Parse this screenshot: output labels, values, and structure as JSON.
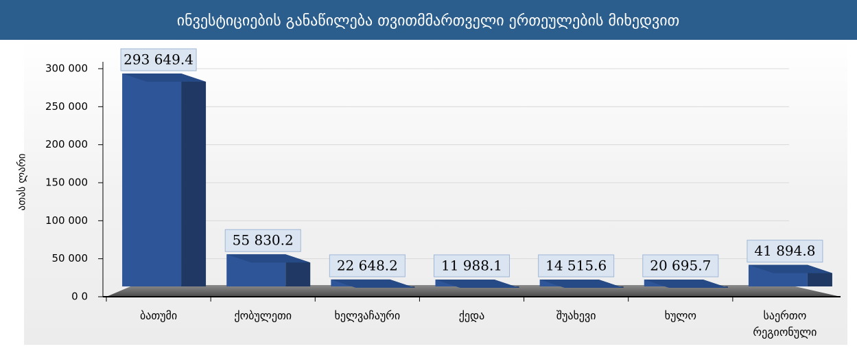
{
  "chart_data": {
    "type": "bar3d",
    "title": "ინვესტიციების განაწილება თვითმმართველი ერთეულების მიხედვით",
    "ylabel": "ათას ლარი",
    "categories": [
      "ბათუმი",
      "ქობულეთი",
      "ხელვაჩაური",
      "ქედა",
      "შუახევი",
      "ხულო",
      "საერთო რეგიონული"
    ],
    "values": [
      293649.4,
      55830.2,
      22648.2,
      11988.1,
      14515.6,
      20695.7,
      41894.8
    ],
    "value_labels": [
      "293 649.4",
      "55 830.2",
      "22 648.2",
      "11 988.1",
      "14 515.6",
      "20 695.7",
      "41 894.8"
    ],
    "color": "#2e5597",
    "ylim": [
      0,
      300000
    ],
    "yticks": [
      {
        "value": 0,
        "label": "0 0"
      },
      {
        "value": 50000,
        "label": "50 000"
      },
      {
        "value": 100000,
        "label": "100 000"
      },
      {
        "value": 150000,
        "label": "150 000"
      },
      {
        "value": 200000,
        "label": "200 000"
      },
      {
        "value": 250000,
        "label": "250 000"
      },
      {
        "value": 300000,
        "label": "300 000"
      }
    ],
    "grid": true
  }
}
